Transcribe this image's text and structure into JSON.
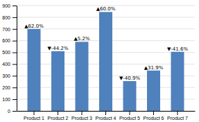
{
  "chart_data": {
    "type": "bar",
    "categories": [
      "Product 1",
      "Product 2",
      "Product 3",
      "Product 4",
      "Product 5",
      "Product 6",
      "Product 7"
    ],
    "values": [
      700,
      510,
      590,
      845,
      255,
      345,
      505
    ],
    "annotations": [
      "▲62.0%",
      "▼-44.2%",
      "▲5.2%",
      "▲60.0%",
      "▼-40.9%",
      "▲31.9%",
      "▼-41.6%"
    ],
    "color": "#4f81bd",
    "ylim": [
      0,
      900
    ],
    "yticks": [
      0,
      100,
      200,
      300,
      400,
      500,
      600,
      700,
      800,
      900
    ],
    "grid": true
  }
}
